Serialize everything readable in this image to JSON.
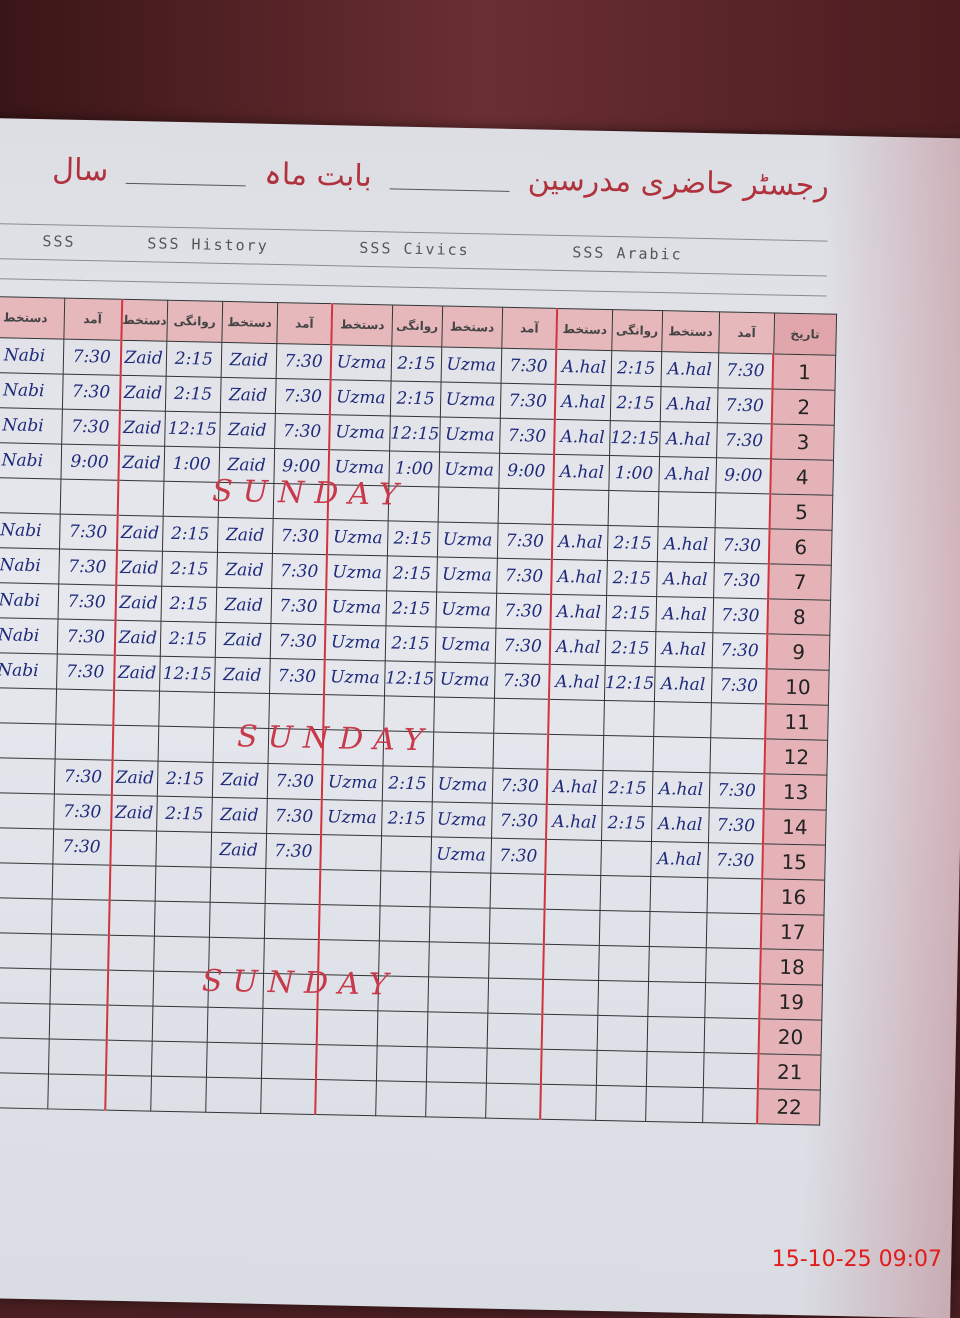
{
  "header": {
    "title": "رجسٹر حاضری مدرسین",
    "month_label": "بابت ماہ",
    "year_label": "سال"
  },
  "subjects": [
    "SSS",
    "SSS History",
    "SSS Civics",
    "SSS Arabic"
  ],
  "column_headers": [
    "دستخط",
    "آمد",
    "دستخط",
    "روانگی",
    "دستخط",
    "آمد",
    "دستخط",
    "روانگی",
    "دستخط",
    "آمد",
    "دستخط",
    "روانگی",
    "دستخط",
    "آمد"
  ],
  "date_header": "تاریخ",
  "sunday_label": "SUNDAY",
  "sunday_rows": [
    5,
    12,
    19
  ],
  "rows": [
    {
      "date": "1",
      "cells": [
        "Nabi",
        "7:30",
        "Zaid",
        "2:15",
        "Zaid",
        "7:30",
        "Uzma",
        "2:15",
        "Uzma",
        "7:30",
        "A.hal",
        "2:15",
        "A.hal",
        "7:30"
      ]
    },
    {
      "date": "2",
      "cells": [
        "Nabi",
        "7:30",
        "Zaid",
        "2:15",
        "Zaid",
        "7:30",
        "Uzma",
        "2:15",
        "Uzma",
        "7:30",
        "A.hal",
        "2:15",
        "A.hal",
        "7:30"
      ]
    },
    {
      "date": "3",
      "cells": [
        "Nabi",
        "7:30",
        "Zaid",
        "12:15",
        "Zaid",
        "7:30",
        "Uzma",
        "12:15",
        "Uzma",
        "7:30",
        "A.hal",
        "12:15",
        "A.hal",
        "7:30"
      ]
    },
    {
      "date": "4",
      "cells": [
        "Nabi",
        "9:00",
        "Zaid",
        "1:00",
        "Zaid",
        "9:00",
        "Uzma",
        "1:00",
        "Uzma",
        "9:00",
        "A.hal",
        "1:00",
        "A.hal",
        "9:00"
      ]
    },
    {
      "date": "5",
      "cells": [
        "",
        "",
        "",
        "",
        "",
        "",
        "",
        "",
        "",
        "",
        "",
        "",
        "",
        ""
      ]
    },
    {
      "date": "6",
      "cells": [
        "Nabi",
        "7:30",
        "Zaid",
        "2:15",
        "Zaid",
        "7:30",
        "Uzma",
        "2:15",
        "Uzma",
        "7:30",
        "A.hal",
        "2:15",
        "A.hal",
        "7:30"
      ]
    },
    {
      "date": "7",
      "cells": [
        "Nabi",
        "7:30",
        "Zaid",
        "2:15",
        "Zaid",
        "7:30",
        "Uzma",
        "2:15",
        "Uzma",
        "7:30",
        "A.hal",
        "2:15",
        "A.hal",
        "7:30"
      ]
    },
    {
      "date": "8",
      "cells": [
        "Nabi",
        "7:30",
        "Zaid",
        "2:15",
        "Zaid",
        "7:30",
        "Uzma",
        "2:15",
        "Uzma",
        "7:30",
        "A.hal",
        "2:15",
        "A.hal",
        "7:30"
      ]
    },
    {
      "date": "9",
      "cells": [
        "Nabi",
        "7:30",
        "Zaid",
        "2:15",
        "Zaid",
        "7:30",
        "Uzma",
        "2:15",
        "Uzma",
        "7:30",
        "A.hal",
        "2:15",
        "A.hal",
        "7:30"
      ]
    },
    {
      "date": "10",
      "cells": [
        "Nabi",
        "7:30",
        "Zaid",
        "12:15",
        "Zaid",
        "7:30",
        "Uzma",
        "12:15",
        "Uzma",
        "7:30",
        "A.hal",
        "12:15",
        "A.hal",
        "7:30"
      ]
    },
    {
      "date": "11",
      "cells": [
        "",
        "",
        "",
        "",
        "",
        "",
        "",
        "",
        "",
        "",
        "",
        "",
        "",
        ""
      ]
    },
    {
      "date": "12",
      "cells": [
        "",
        "",
        "",
        "",
        "",
        "",
        "",
        "",
        "",
        "",
        "",
        "",
        "",
        ""
      ]
    },
    {
      "date": "13",
      "cells": [
        "",
        "7:30",
        "Zaid",
        "2:15",
        "Zaid",
        "7:30",
        "Uzma",
        "2:15",
        "Uzma",
        "7:30",
        "A.hal",
        "2:15",
        "A.hal",
        "7:30"
      ]
    },
    {
      "date": "14",
      "cells": [
        "",
        "7:30",
        "Zaid",
        "2:15",
        "Zaid",
        "7:30",
        "Uzma",
        "2:15",
        "Uzma",
        "7:30",
        "A.hal",
        "2:15",
        "A.hal",
        "7:30"
      ]
    },
    {
      "date": "15",
      "cells": [
        "",
        "7:30",
        "",
        "",
        "Zaid",
        "7:30",
        "",
        "",
        "Uzma",
        "7:30",
        "",
        "",
        "A.hal",
        "7:30"
      ]
    },
    {
      "date": "16",
      "cells": [
        "",
        "",
        "",
        "",
        "",
        "",
        "",
        "",
        "",
        "",
        "",
        "",
        "",
        ""
      ]
    },
    {
      "date": "17",
      "cells": [
        "",
        "",
        "",
        "",
        "",
        "",
        "",
        "",
        "",
        "",
        "",
        "",
        "",
        ""
      ]
    },
    {
      "date": "18",
      "cells": [
        "",
        "",
        "",
        "",
        "",
        "",
        "",
        "",
        "",
        "",
        "",
        "",
        "",
        ""
      ]
    },
    {
      "date": "19",
      "cells": [
        "",
        "",
        "",
        "",
        "",
        "",
        "",
        "",
        "",
        "",
        "",
        "",
        "",
        ""
      ]
    },
    {
      "date": "20",
      "cells": [
        "",
        "",
        "",
        "",
        "",
        "",
        "",
        "",
        "",
        "",
        "",
        "",
        "",
        ""
      ]
    },
    {
      "date": "21",
      "cells": [
        "",
        "",
        "",
        "",
        "",
        "",
        "",
        "",
        "",
        "",
        "",
        "",
        "",
        ""
      ]
    },
    {
      "date": "22",
      "cells": [
        "",
        "",
        "",
        "",
        "",
        "",
        "",
        "",
        "",
        "",
        "",
        "",
        "",
        ""
      ]
    }
  ],
  "camera_timestamp": "15-10-25  09:07",
  "colors": {
    "ink_red": "#c8394a",
    "ink_blue": "#1f2a7a",
    "margin_pink": "#e5b3b7",
    "stamp": "#e21b1b"
  }
}
